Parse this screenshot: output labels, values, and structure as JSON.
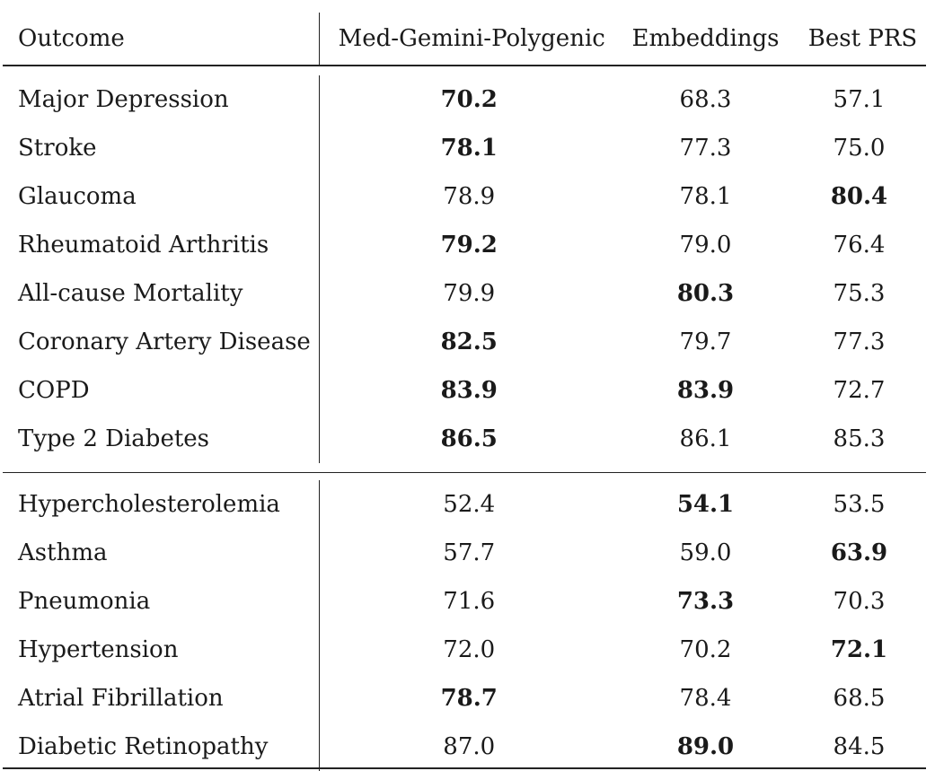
{
  "headers": {
    "outcome": "Outcome",
    "med_gemini": "Med-Gemini-Polygenic",
    "embeddings": "Embeddings",
    "best_prs": "Best PRS"
  },
  "group1": [
    {
      "outcome": "Major Depression",
      "med_gemini": "70.2",
      "embeddings": "68.3",
      "best_prs": "57.1",
      "bold": "med_gemini"
    },
    {
      "outcome": "Stroke",
      "med_gemini": "78.1",
      "embeddings": "77.3",
      "best_prs": "75.0",
      "bold": "med_gemini"
    },
    {
      "outcome": "Glaucoma",
      "med_gemini": "78.9",
      "embeddings": "78.1",
      "best_prs": "80.4",
      "bold": "best_prs"
    },
    {
      "outcome": "Rheumatoid Arthritis",
      "med_gemini": "79.2",
      "embeddings": "79.0",
      "best_prs": "76.4",
      "bold": "med_gemini"
    },
    {
      "outcome": "All-cause Mortality",
      "med_gemini": "79.9",
      "embeddings": "80.3",
      "best_prs": "75.3",
      "bold": "embeddings"
    },
    {
      "outcome": "Coronary Artery Disease",
      "med_gemini": "82.5",
      "embeddings": "79.7",
      "best_prs": "77.3",
      "bold": "med_gemini"
    },
    {
      "outcome": "COPD",
      "med_gemini": "83.9",
      "embeddings": "83.9",
      "best_prs": "72.7",
      "bold": "med_gemini,embeddings"
    },
    {
      "outcome": "Type 2 Diabetes",
      "med_gemini": "86.5",
      "embeddings": "86.1",
      "best_prs": "85.3",
      "bold": "med_gemini"
    }
  ],
  "group2": [
    {
      "outcome": "Hypercholesterolemia",
      "med_gemini": "52.4",
      "embeddings": "54.1",
      "best_prs": "53.5",
      "bold": "embeddings"
    },
    {
      "outcome": "Asthma",
      "med_gemini": "57.7",
      "embeddings": "59.0",
      "best_prs": "63.9",
      "bold": "best_prs"
    },
    {
      "outcome": "Pneumonia",
      "med_gemini": "71.6",
      "embeddings": "73.3",
      "best_prs": "70.3",
      "bold": "embeddings"
    },
    {
      "outcome": "Hypertension",
      "med_gemini": "72.0",
      "embeddings": "70.2",
      "best_prs": "72.1",
      "bold": "best_prs"
    },
    {
      "outcome": "Atrial Fibrillation",
      "med_gemini": "78.7",
      "embeddings": "78.4",
      "best_prs": "68.5",
      "bold": "med_gemini"
    },
    {
      "outcome": "Diabetic Retinopathy",
      "med_gemini": "87.0",
      "embeddings": "89.0",
      "best_prs": "84.5",
      "bold": "embeddings"
    }
  ]
}
